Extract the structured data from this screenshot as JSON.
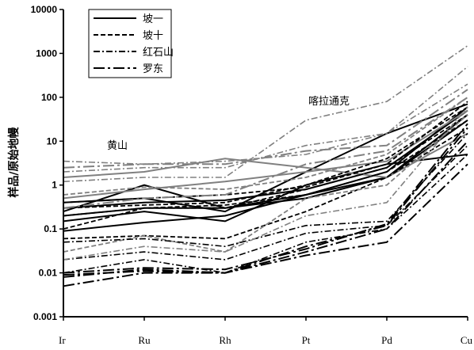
{
  "chart_data": {
    "type": "line",
    "y_scale": "log",
    "ylim": [
      0.001,
      10000
    ],
    "yticks": [
      "0.001",
      "0.01",
      "0.1",
      "1",
      "10",
      "100",
      "1000",
      "10000"
    ],
    "categories": [
      "Ir",
      "Ru",
      "Rh",
      "Pt",
      "Pd",
      "Cu"
    ],
    "ylabel": "样品/原始地幔",
    "grid": false,
    "legend_position": "top-left",
    "annotations": [
      "黄山",
      "喀拉通克"
    ],
    "colors": {
      "black": "#000000",
      "gray": "#808080",
      "axis": "#000000"
    },
    "groups": [
      {
        "name": "坡一",
        "style": "solid",
        "series": [
          {
            "color": "black",
            "values": [
              0.09,
              0.14,
              0.2,
              0.6,
              2.0,
              60
            ]
          },
          {
            "color": "black",
            "values": [
              0.2,
              0.3,
              0.3,
              0.5,
              1.5,
              30
            ]
          },
          {
            "color": "black",
            "values": [
              0.3,
              0.4,
              0.45,
              0.8,
              2.5,
              50
            ]
          },
          {
            "color": "black",
            "values": [
              0.4,
              0.5,
              0.25,
              2.0,
              15,
              70
            ]
          },
          {
            "color": "black",
            "values": [
              0.15,
              0.25,
              0.15,
              1.0,
              3.0,
              5
            ]
          },
          {
            "color": "black",
            "values": [
              0.25,
              1.0,
              0.3,
              0.6,
              1.5,
              40
            ]
          },
          {
            "color": "gray",
            "values": [
              0.5,
              0.8,
              1.2,
              2.0,
              3.5,
              50
            ]
          },
          {
            "color": "gray",
            "values": [
              1.5,
              2.0,
              4.0,
              2.5,
              1.5,
              15
            ]
          }
        ]
      },
      {
        "name": "坡十",
        "style": "dashed",
        "series": [
          {
            "color": "black",
            "values": [
              0.3,
              0.35,
              0.4,
              1.0,
              4.0,
              60
            ]
          },
          {
            "color": "black",
            "values": [
              0.2,
              0.3,
              0.3,
              0.8,
              2.5,
              40
            ]
          },
          {
            "color": "black",
            "values": [
              0.1,
              0.3,
              0.35,
              0.6,
              2.0,
              30
            ]
          },
          {
            "color": "black",
            "values": [
              0.06,
              0.07,
              0.06,
              0.25,
              1.5,
              20
            ]
          },
          {
            "color": "black",
            "values": [
              0.4,
              0.5,
              0.6,
              0.9,
              3.0,
              80
            ]
          },
          {
            "color": "gray",
            "values": [
              0.03,
              0.07,
              0.03,
              0.5,
              1.0,
              40
            ]
          },
          {
            "color": "gray",
            "values": [
              0.6,
              0.9,
              0.8,
              1.5,
              5.0,
              100
            ]
          }
        ]
      },
      {
        "name": "红石山",
        "style": "dashdot",
        "series": [
          {
            "color": "black",
            "values": [
              0.02,
              0.03,
              0.02,
              0.08,
              0.12,
              8
            ]
          },
          {
            "color": "black",
            "values": [
              0.01,
              0.02,
              0.01,
              0.05,
              0.1,
              5
            ]
          },
          {
            "color": "black",
            "values": [
              0.05,
              0.06,
              0.04,
              0.12,
              0.15,
              15
            ]
          },
          {
            "color": "gray",
            "values": [
              2.0,
              2.5,
              2.5,
              8.0,
              15,
              200
            ]
          },
          {
            "color": "gray",
            "values": [
              1.2,
              1.5,
              1.5,
              30,
              80,
              1500
            ]
          },
          {
            "color": "gray",
            "values": [
              3.5,
              3.0,
              3.5,
              5.0,
              15,
              500
            ]
          },
          {
            "color": "gray",
            "values": [
              0.02,
              0.04,
              0.03,
              0.2,
              0.4,
              60
            ]
          }
        ]
      },
      {
        "name": "罗东",
        "style": "longdash",
        "series": [
          {
            "color": "black",
            "values": [
              0.008,
              0.012,
              0.01,
              0.04,
              0.12,
              20
            ]
          },
          {
            "color": "black",
            "values": [
              0.005,
              0.01,
              0.01,
              0.03,
              0.1,
              10
            ]
          },
          {
            "color": "black",
            "values": [
              0.009,
              0.011,
              0.01,
              0.025,
              0.05,
              3
            ]
          },
          {
            "color": "black",
            "values": [
              0.01,
              0.013,
              0.012,
              0.035,
              0.13,
              25
            ]
          },
          {
            "color": "gray",
            "values": [
              0.3,
              0.5,
              0.6,
              3.0,
              6.0,
              100
            ]
          },
          {
            "color": "gray",
            "values": [
              2.5,
              3.0,
              3.0,
              6.0,
              8.0,
              150
            ]
          }
        ]
      }
    ]
  }
}
